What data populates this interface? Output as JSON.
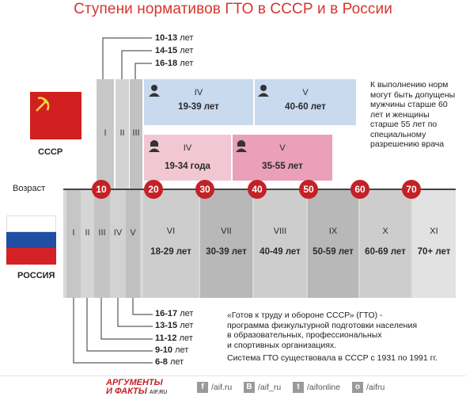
{
  "title": "Ступени нормативов ГТО в СССР и в России",
  "ussr": {
    "label": "СССР",
    "top_ages": [
      {
        "n": "10-13",
        "u": "лет"
      },
      {
        "n": "14-15",
        "u": "лет"
      },
      {
        "n": "16-18",
        "u": "лет"
      }
    ],
    "narrow_stages": [
      "I",
      "II",
      "III"
    ],
    "men": [
      {
        "roman": "IV",
        "range": "19-39 лет"
      },
      {
        "roman": "V",
        "range": "40-60 лет"
      }
    ],
    "women": [
      {
        "roman": "IV",
        "range": "19-34 года"
      },
      {
        "roman": "V",
        "range": "35-55 лет"
      }
    ],
    "note": "К выполнению норм могут быть допущены мужчины старше 60 лет и женщины старше 55 лет по специальному разрешению врача"
  },
  "axis": {
    "label": "Возраст",
    "markers": [
      "10",
      "20",
      "30",
      "40",
      "50",
      "60",
      "70"
    ]
  },
  "russia": {
    "label": "РОССИЯ",
    "narrow_stages": [
      "I",
      "II",
      "III",
      "IV",
      "V"
    ],
    "stages": [
      {
        "roman": "VI",
        "range": "18-29 лет"
      },
      {
        "roman": "VII",
        "range": "30-39 лет"
      },
      {
        "roman": "VIII",
        "range": "40-49 лет"
      },
      {
        "roman": "IX",
        "range": "50-59 лет"
      },
      {
        "roman": "X",
        "range": "60-69 лет"
      },
      {
        "roman": "XI",
        "range": "70+ лет"
      }
    ],
    "bottom_ages": [
      {
        "n": "16-17",
        "u": "лет"
      },
      {
        "n": "13-15",
        "u": "лет"
      },
      {
        "n": "11-12",
        "u": "лет"
      },
      {
        "n": "9-10",
        "u": "лет"
      },
      {
        "n": "6-8",
        "u": "лет"
      }
    ]
  },
  "description": {
    "line1": "«Готов к труду и обороне СССР» (ГТО) -",
    "line2": "программа физкультурной подготовки населения",
    "line3": "в образовательных, профессиональных",
    "line4": "и спортивных организациях.",
    "line5": "Система ГТО существовала в СССР с 1931 по 1991 гг."
  },
  "footer": {
    "logo_top": "АРГУМЕНТЫ",
    "logo_bottom": "И ФАКТЫ",
    "logo_site": "AIF.RU",
    "links": [
      {
        "icon": "f",
        "text": "/aif.ru"
      },
      {
        "icon": "В",
        "text": "/aif_ru"
      },
      {
        "icon": "t",
        "text": "/aifonline"
      },
      {
        "icon": "o",
        "text": "/aifru"
      }
    ]
  },
  "colors": {
    "accent_red": "#c42126",
    "men_blue": "#c9d9ee",
    "women_pink": "#f1c7d3",
    "women_pink_dark": "#e28ba6",
    "stage_grey": "#cfcfcf",
    "stage_grey_dark": "#b5b5b5"
  }
}
